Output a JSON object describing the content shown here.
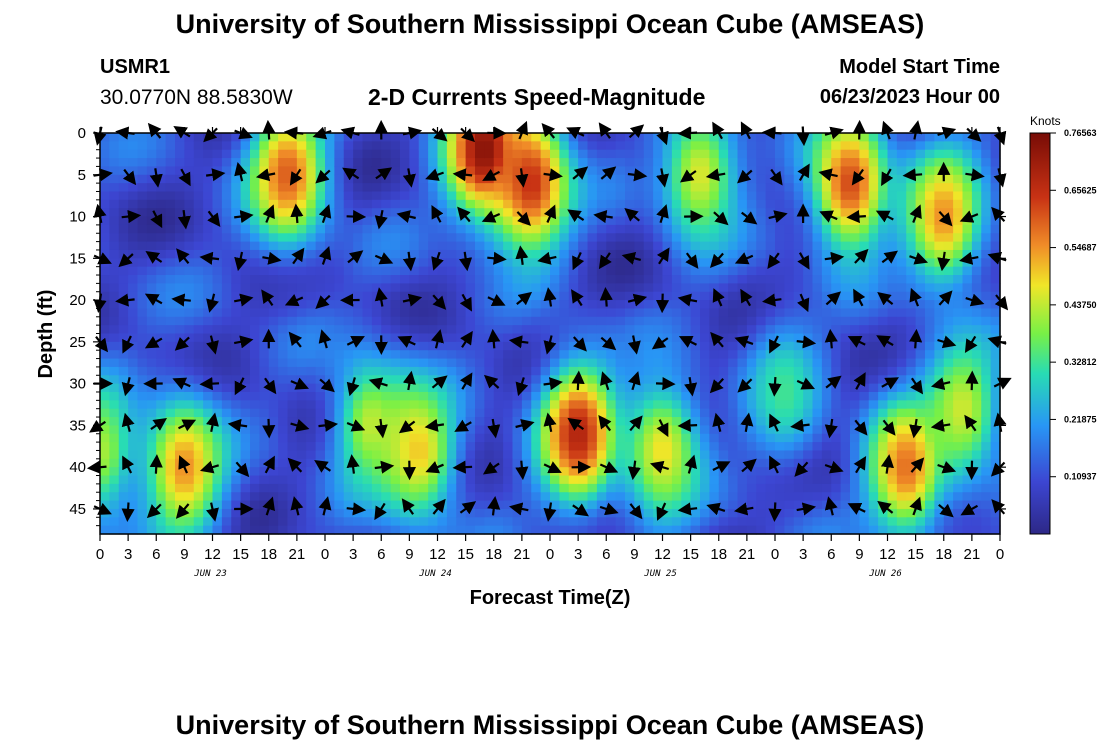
{
  "header": {
    "title": "University of Southern Mississippi Ocean Cube (AMSEAS)",
    "station_name": "USMR1",
    "station_coords": "30.0770N  88.5830W",
    "subtitle": "2-D Currents Speed-Magnitude",
    "model_start_label": "Model Start Time",
    "model_start_time": "06/23/2023 Hour 00"
  },
  "footer": {
    "title": "University of Southern Mississippi Ocean Cube (AMSEAS)"
  },
  "colors": {
    "low": "#2d2a8f",
    "high": "#7a0d06"
  },
  "chart_data": {
    "type": "heatmap",
    "title": "2-D Currents Speed-Magnitude",
    "xlabel": "Forecast Time(Z)",
    "ylabel": "Depth (ft)",
    "x_ticks": [
      "0",
      "3",
      "6",
      "9",
      "12",
      "15",
      "18",
      "21",
      "0",
      "3",
      "6",
      "9",
      "12",
      "15",
      "18",
      "21",
      "0",
      "3",
      "6",
      "9",
      "12",
      "15",
      "18",
      "21",
      "0",
      "3",
      "6",
      "9",
      "12",
      "15",
      "18",
      "21",
      "0"
    ],
    "x_day_labels": [
      "JUN 23",
      "JUN 24",
      "JUN 25",
      "JUN 26"
    ],
    "xlim": [
      0,
      96
    ],
    "y_ticks": [
      "0",
      "5",
      "10",
      "15",
      "20",
      "25",
      "30",
      "35",
      "40",
      "45"
    ],
    "ylim": [
      0,
      48
    ],
    "colorbar": {
      "unit": "Knots",
      "tick_labels": [
        "0.76563",
        "0.65625",
        "0.54687",
        "0.43750",
        "0.32812",
        "0.21875",
        "0.10937"
      ],
      "range": [
        0,
        0.765625
      ]
    },
    "speed_features": [
      {
        "t": 0,
        "depth": 38,
        "value": 0.42
      },
      {
        "t": 9,
        "depth": 40,
        "value": 0.55
      },
      {
        "t": 20,
        "depth": 5,
        "value": 0.6
      },
      {
        "t": 29,
        "depth": 35,
        "value": 0.44
      },
      {
        "t": 34,
        "depth": 38,
        "value": 0.5
      },
      {
        "t": 41,
        "depth": 2,
        "value": 0.74
      },
      {
        "t": 46,
        "depth": 6,
        "value": 0.65
      },
      {
        "t": 51,
        "depth": 36,
        "value": 0.68
      },
      {
        "t": 60,
        "depth": 38,
        "value": 0.48
      },
      {
        "t": 64,
        "depth": 5,
        "value": 0.46
      },
      {
        "t": 73,
        "depth": 31,
        "value": 0.33
      },
      {
        "t": 80,
        "depth": 6,
        "value": 0.62
      },
      {
        "t": 90,
        "depth": 10,
        "value": 0.55
      },
      {
        "t": 86,
        "depth": 40,
        "value": 0.58
      },
      {
        "t": 92,
        "depth": 33,
        "value": 0.45
      }
    ],
    "arrow_field": {
      "time_step_hours": 3,
      "depth_levels": [
        0,
        5,
        10,
        15,
        20,
        25,
        30,
        35,
        40,
        45
      ],
      "units": "direction"
    }
  }
}
